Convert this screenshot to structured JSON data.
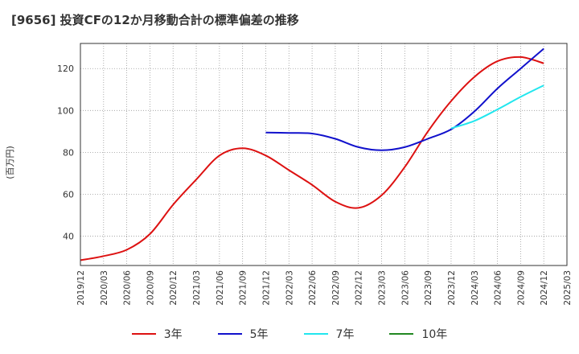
{
  "chart_data": {
    "type": "line",
    "title": "[9656]  投資CFの12か月移動合計の標準偏差の推移",
    "ylabel": "(百万円)",
    "xlabel": "",
    "ylim": [
      26,
      132
    ],
    "yticks": [
      40,
      60,
      80,
      100,
      120
    ],
    "x_ticks": [
      "2019/12",
      "2020/03",
      "2020/06",
      "2020/09",
      "2020/12",
      "2021/03",
      "2021/06",
      "2021/09",
      "2021/12",
      "2022/03",
      "2022/06",
      "2022/09",
      "2022/12",
      "2023/03",
      "2023/06",
      "2023/09",
      "2023/12",
      "2024/03",
      "2024/06",
      "2024/09",
      "2024/12",
      "2025/03"
    ],
    "grid": true,
    "legend_position": "bottom",
    "series": [
      {
        "name": "3年",
        "color": "#dd1111",
        "points": [
          [
            "2019/12",
            28.5
          ],
          [
            "2020/03",
            30.5
          ],
          [
            "2020/06",
            33.5
          ],
          [
            "2020/09",
            41
          ],
          [
            "2020/12",
            55
          ],
          [
            "2021/03",
            67
          ],
          [
            "2021/06",
            78.5
          ],
          [
            "2021/09",
            82
          ],
          [
            "2021/12",
            78.5
          ],
          [
            "2022/03",
            71.5
          ],
          [
            "2022/06",
            64.5
          ],
          [
            "2022/09",
            56.5
          ],
          [
            "2022/12",
            53.5
          ],
          [
            "2023/03",
            59.5
          ],
          [
            "2023/06",
            73
          ],
          [
            "2023/09",
            90
          ],
          [
            "2023/12",
            104.5
          ],
          [
            "2024/03",
            116
          ],
          [
            "2024/06",
            123.5
          ],
          [
            "2024/09",
            125.5
          ],
          [
            "2024/12",
            122.5
          ]
        ]
      },
      {
        "name": "5年",
        "color": "#1111cc",
        "points": [
          [
            "2021/12",
            89.5
          ],
          [
            "2022/03",
            89.3
          ],
          [
            "2022/06",
            89
          ],
          [
            "2022/09",
            86.5
          ],
          [
            "2022/12",
            82.5
          ],
          [
            "2023/03",
            81
          ],
          [
            "2023/06",
            82.5
          ],
          [
            "2023/09",
            86.5
          ],
          [
            "2023/12",
            91
          ],
          [
            "2024/03",
            99.5
          ],
          [
            "2024/06",
            110.5
          ],
          [
            "2024/09",
            120
          ],
          [
            "2024/12",
            129.5
          ]
        ]
      },
      {
        "name": "7年",
        "color": "#22e6ee",
        "points": [
          [
            "2023/12",
            91.5
          ],
          [
            "2024/03",
            95
          ],
          [
            "2024/06",
            100.5
          ],
          [
            "2024/09",
            106.5
          ],
          [
            "2024/12",
            112
          ]
        ]
      },
      {
        "name": "10年",
        "color": "#228822",
        "points": []
      }
    ]
  }
}
